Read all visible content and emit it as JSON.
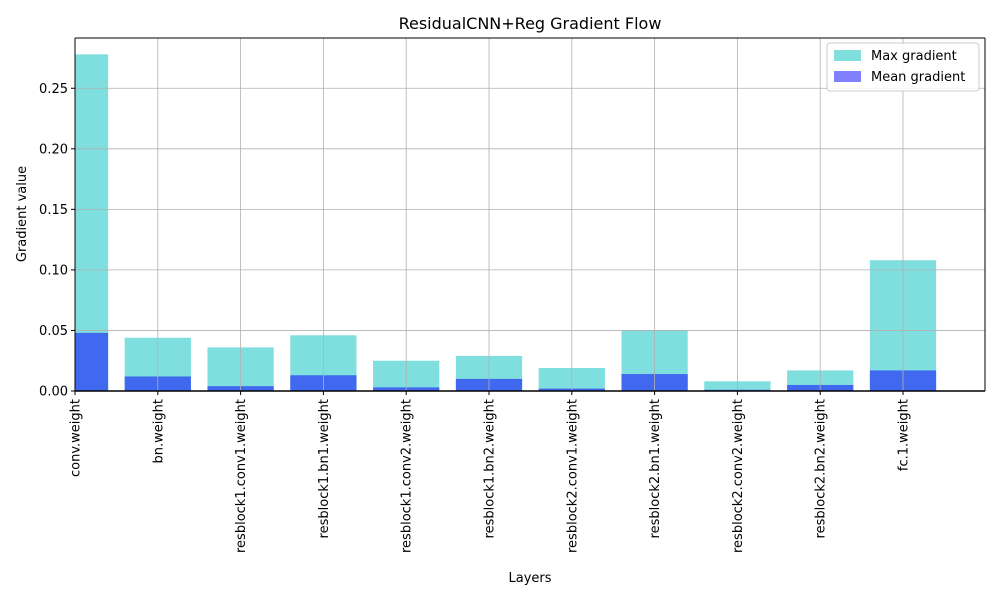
{
  "chart_data": {
    "type": "bar",
    "title": "ResidualCNN+Reg Gradient Flow",
    "xlabel": "Layers",
    "ylabel": "Gradient value",
    "categories": [
      "conv.weight",
      "bn.weight",
      "resblock1.conv1.weight",
      "resblock1.bn1.weight",
      "resblock1.conv2.weight",
      "resblock1.bn2.weight",
      "resblock2.conv1.weight",
      "resblock2.bn1.weight",
      "resblock2.conv2.weight",
      "resblock2.bn2.weight",
      "fc.1.weight"
    ],
    "series": [
      {
        "name": "Max gradient",
        "color": "#7fdfdf",
        "values": [
          0.278,
          0.044,
          0.036,
          0.046,
          0.025,
          0.029,
          0.019,
          0.05,
          0.008,
          0.017,
          0.108
        ]
      },
      {
        "name": "Mean gradient",
        "color": "#4169f0",
        "values": [
          0.048,
          0.012,
          0.004,
          0.013,
          0.003,
          0.01,
          0.002,
          0.014,
          0.001,
          0.005,
          0.017
        ]
      }
    ],
    "ylim": [
      0,
      0.2915
    ],
    "yticks": [
      "0.00",
      "0.05",
      "0.10",
      "0.15",
      "0.20",
      "0.25"
    ],
    "ytick_values": [
      0,
      0.05,
      0.1,
      0.15,
      0.2,
      0.25
    ],
    "legend": {
      "position": "upper right",
      "entries": [
        {
          "label": "Max gradient",
          "color": "#7fdfdf"
        },
        {
          "label": "Mean gradient",
          "color": "#8080ff"
        }
      ]
    },
    "grid": true,
    "overlay": true
  }
}
